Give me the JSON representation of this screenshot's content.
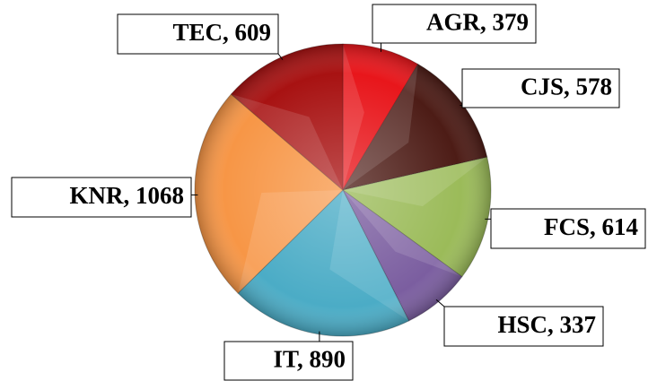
{
  "chart_data": {
    "type": "pie",
    "categories": [
      "AGR",
      "CJS",
      "FCS",
      "HSC",
      "IT",
      "KNR",
      "TEC"
    ],
    "values": [
      379,
      578,
      614,
      337,
      890,
      1068,
      609
    ],
    "value_labels": [
      "AGR, 379",
      "CJS, 578",
      "FCS, 614",
      "HSC, 337",
      "IT, 890",
      "KNR, 1068",
      "TEC, 609"
    ],
    "colors": [
      "#e8161b",
      "#4d1c16",
      "#9bbb59",
      "#7b5ea0",
      "#4bacc6",
      "#f79646",
      "#a81212"
    ]
  }
}
